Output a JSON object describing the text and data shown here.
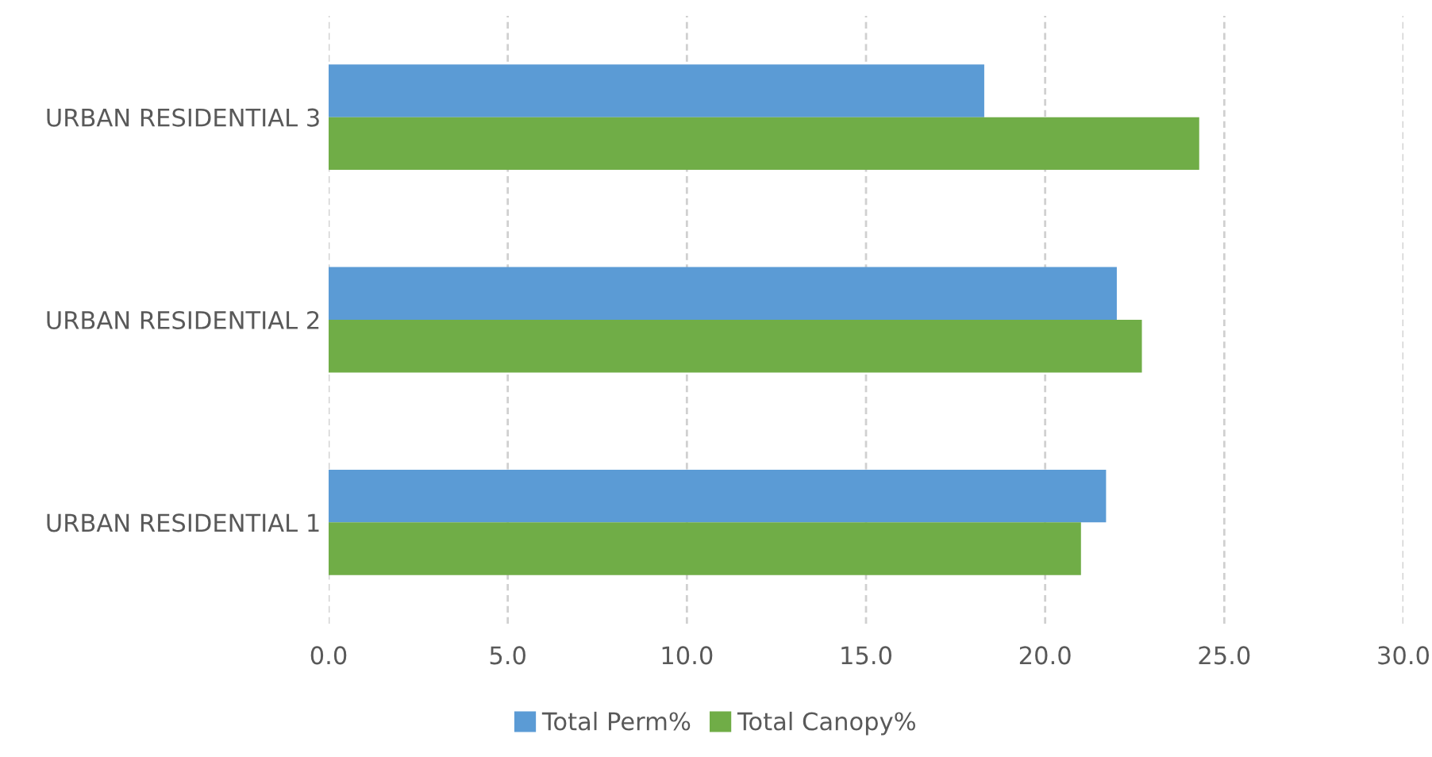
{
  "chart_data": {
    "type": "bar",
    "orientation": "horizontal",
    "categories": [
      "URBAN RESIDENTIAL 3",
      "URBAN RESIDENTIAL 2",
      "URBAN RESIDENTIAL 1"
    ],
    "series": [
      {
        "name": "Total Perm%",
        "color": "#5b9bd5",
        "values": [
          18.3,
          22.0,
          21.7
        ]
      },
      {
        "name": "Total Canopy%",
        "color": "#70ad47",
        "values": [
          24.3,
          22.7,
          21.0
        ]
      }
    ],
    "xlim": [
      0,
      30
    ],
    "xticks": [
      {
        "value": 0,
        "label": "0.0"
      },
      {
        "value": 5,
        "label": "5.0"
      },
      {
        "value": 10,
        "label": "10.0"
      },
      {
        "value": 15,
        "label": "15.0"
      },
      {
        "value": 20,
        "label": "20.0"
      },
      {
        "value": 25,
        "label": "25.0"
      },
      {
        "value": 30,
        "label": "30.0"
      }
    ],
    "grid": "x",
    "legend": "bottom"
  }
}
